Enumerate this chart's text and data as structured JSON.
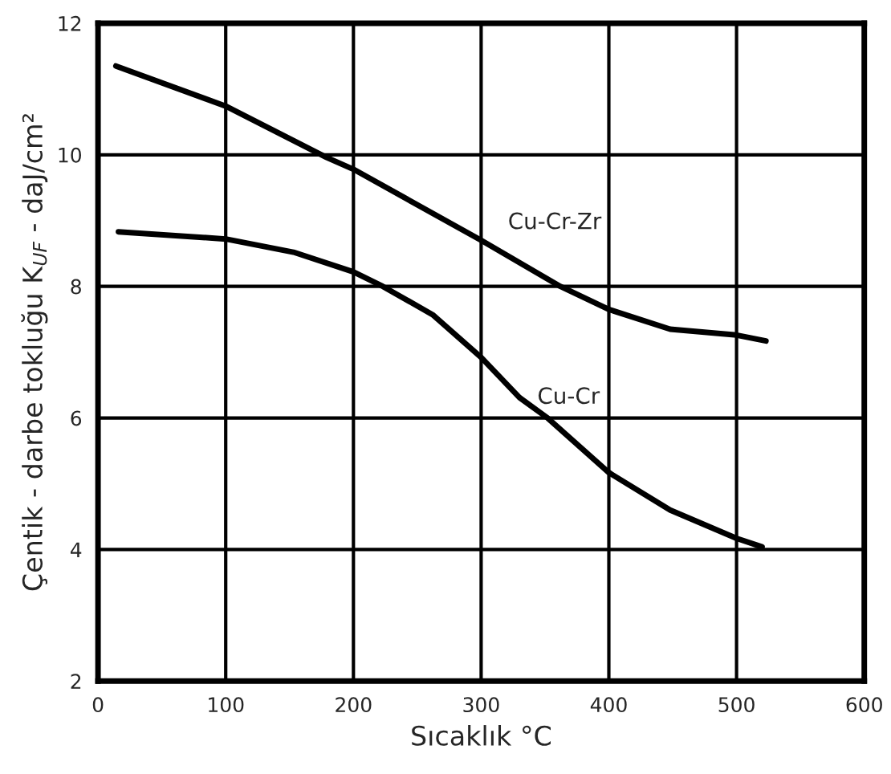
{
  "chart_data": {
    "type": "line",
    "xlabel": "Sıcaklık °C",
    "ylabel": "Çentik - darbe tokluğu K$_{UF}$ - daJ/cm²",
    "xlim": [
      0,
      600
    ],
    "xticks": [
      0,
      100,
      200,
      300,
      400,
      500,
      600
    ],
    "ylim": [
      2,
      12
    ],
    "yticks": [
      2,
      4,
      6,
      8,
      10,
      12
    ],
    "grid": true,
    "legend": false,
    "marker": "none",
    "line_style": "solid",
    "series": [
      {
        "name": "Cu-Cr-Zr",
        "color": "#000000",
        "x": [
          14,
          100,
          179,
          200,
          300,
          362,
          400,
          448,
          500,
          523
        ],
        "values": [
          11.35,
          10.74,
          9.96,
          9.78,
          8.7,
          8.0,
          7.65,
          7.35,
          7.26,
          7.17
        ]
      },
      {
        "name": "Cu-Cr",
        "color": "#000000",
        "x": [
          16,
          100,
          153,
          200,
          223,
          262,
          300,
          330,
          352,
          400,
          448,
          500,
          520
        ],
        "values": [
          8.83,
          8.72,
          8.52,
          8.22,
          8.0,
          7.57,
          6.92,
          6.31,
          6.0,
          5.17,
          4.6,
          4.17,
          4.04
        ]
      }
    ]
  }
}
